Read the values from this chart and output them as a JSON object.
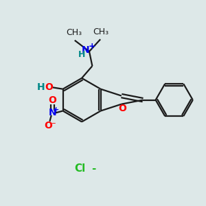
{
  "bg_color": "#dde8e8",
  "bond_color": "#1a1a1a",
  "o_color": "#ff0000",
  "n_color": "#0000ee",
  "h_color": "#008888",
  "cl_color": "#22bb22",
  "lw": 1.6,
  "fs": 10,
  "fs_small": 9,
  "xlim": [
    0,
    10
  ],
  "ylim": [
    0,
    10
  ]
}
